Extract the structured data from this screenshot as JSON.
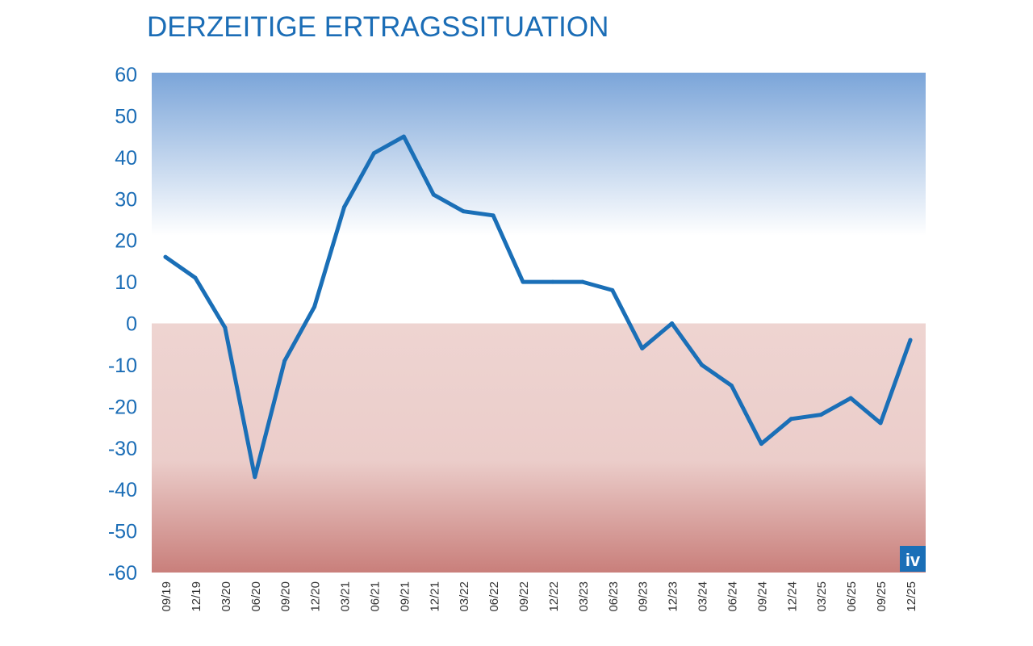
{
  "chart_data": {
    "type": "line",
    "title": "DERZEITIGE ERTRAGSSITUATION",
    "xlabel": "",
    "ylabel": "",
    "ylim": [
      -60,
      60
    ],
    "yticks": [
      60,
      50,
      40,
      30,
      20,
      10,
      0,
      -10,
      -20,
      -30,
      -40,
      -50,
      -60
    ],
    "categories": [
      "09/19",
      "12/19",
      "03/20",
      "06/20",
      "09/20",
      "12/20",
      "03/21",
      "06/21",
      "09/21",
      "12/21",
      "03/22",
      "06/22",
      "09/22",
      "12/22",
      "03/23",
      "06/23",
      "09/23",
      "12/23",
      "03/24",
      "06/24",
      "09/24",
      "12/24",
      "03/25",
      "06/25",
      "09/25",
      "12/25"
    ],
    "values": [
      16,
      11,
      -1,
      -37,
      -9,
      4,
      28,
      41,
      45,
      31,
      27,
      26,
      10,
      10,
      10,
      8,
      -6,
      0,
      -10,
      -15,
      -29,
      -23,
      -22,
      -18,
      -24,
      -4
    ],
    "grid": false,
    "background": "blue gradient for positive, red gradient for negative",
    "colors": {
      "line": "#1a6fb7",
      "positive_bg": "#7ba5d9",
      "negative_bg": "#c97f7b",
      "text": "#1b6db6"
    },
    "logo": "iv"
  }
}
